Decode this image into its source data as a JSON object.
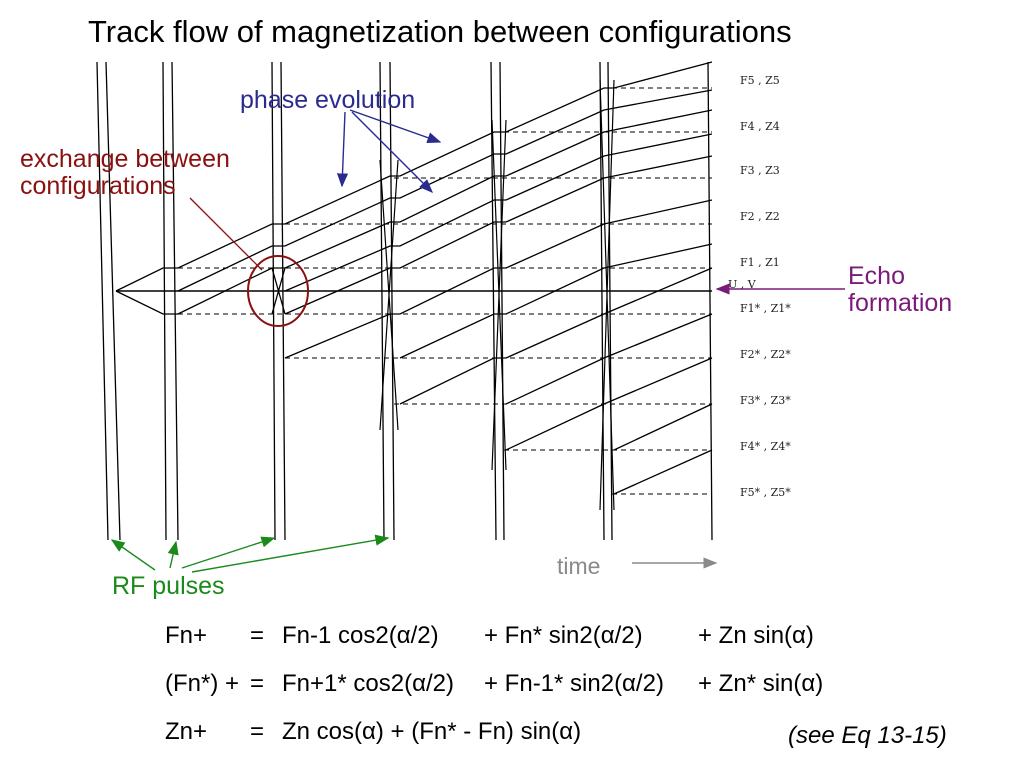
{
  "title": "Track flow of magnetization between configurations",
  "labels": {
    "phase_evolution": "phase evolution",
    "exchange_line1": "exchange between",
    "exchange_line2": "configurations",
    "echo_line1": "Echo",
    "echo_line2": "formation",
    "rf_pulses": "RF pulses",
    "time": "time"
  },
  "states_positive": [
    "F5 , Z5",
    "F4 , Z4",
    "F3 , Z3",
    "F2 , Z2",
    "F1 , Z1"
  ],
  "state_zero": "U , V",
  "states_negative": [
    "F1* , Z1*",
    "F2* , Z2*",
    "F3* , Z3*",
    "F4* , Z4*",
    "F5* , Z5*"
  ],
  "equations": {
    "row1": {
      "lhs": "Fn+",
      "eq": "=",
      "t1": "Fn-1 cos2(α/2)",
      "t2": "+ Fn* sin2(α/2)",
      "t3": "+ Zn sin(α)"
    },
    "row2": {
      "lhs": "(Fn*) +",
      "eq": "=",
      "t1": "Fn+1* cos2(α/2)",
      "t2": "+ Fn-1* sin2(α/2)",
      "t3": "+ Zn* sin(α)"
    },
    "row3": {
      "lhs": "Zn+",
      "eq": "=",
      "t1": "Zn cos(α) + (Fn* - Fn) sin(α)"
    }
  },
  "reference": "(see Eq 13-15)",
  "colors": {
    "blue": "#2b2b8f",
    "red": "#8b1010",
    "purple": "#7a1a7a",
    "green": "#1a8a1a",
    "gray": "#8a8a8a"
  }
}
